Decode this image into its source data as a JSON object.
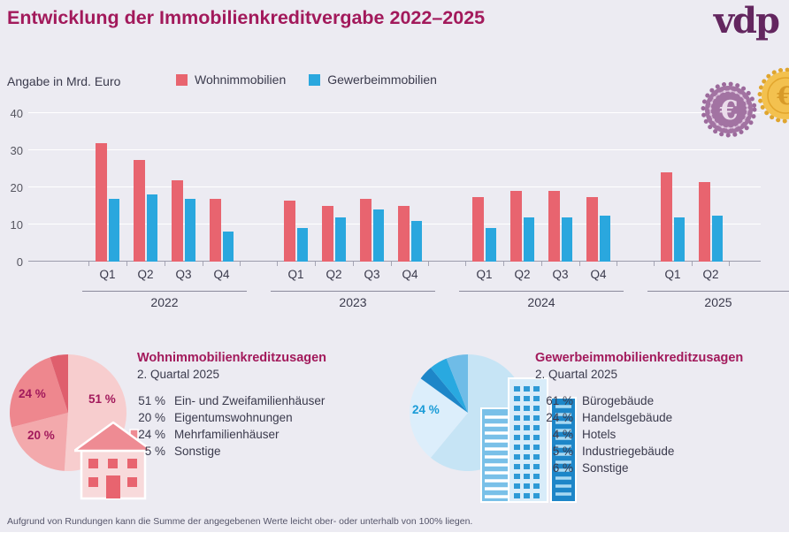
{
  "header": {
    "title": "Entwicklung der Immobilienkreditvergabe 2022–2025",
    "logo_text": "vdp"
  },
  "legend": {
    "unit_label": "Angabe in Mrd. Euro",
    "series": [
      {
        "label": "Wohnimmobilien",
        "color": "#e8646f"
      },
      {
        "label": "Gewerbeimmobilien",
        "color": "#2aa7de"
      }
    ]
  },
  "chart_data": {
    "type": "bar",
    "title": "Entwicklung der Immobilienkreditvergabe 2022–2025",
    "unit": "Mrd. Euro",
    "ylim": [
      0,
      40
    ],
    "yticks": [
      0,
      10,
      20,
      30,
      40
    ],
    "grid": true,
    "legend_position": "top",
    "groups": [
      {
        "year": "2022",
        "quarters": [
          "Q1",
          "Q2",
          "Q3",
          "Q4"
        ],
        "series": [
          {
            "name": "Wohnimmobilien",
            "values": [
              32,
              27.5,
              22,
              17
            ]
          },
          {
            "name": "Gewerbeimmobilien",
            "values": [
              17,
              18,
              17,
              8
            ]
          }
        ]
      },
      {
        "year": "2023",
        "quarters": [
          "Q1",
          "Q2",
          "Q3",
          "Q4"
        ],
        "series": [
          {
            "name": "Wohnimmobilien",
            "values": [
              16.5,
              15,
              17,
              15
            ]
          },
          {
            "name": "Gewerbeimmobilien",
            "values": [
              9,
              12,
              14,
              11
            ]
          }
        ]
      },
      {
        "year": "2024",
        "quarters": [
          "Q1",
          "Q2",
          "Q3",
          "Q4"
        ],
        "series": [
          {
            "name": "Wohnimmobilien",
            "values": [
              17.5,
              19,
              19,
              17.5
            ]
          },
          {
            "name": "Gewerbeimmobilien",
            "values": [
              9,
              12,
              12,
              12.5
            ]
          }
        ]
      },
      {
        "year": "2025",
        "quarters": [
          "Q1",
          "Q2"
        ],
        "series": [
          {
            "name": "Wohnimmobilien",
            "values": [
              24,
              21.5
            ]
          },
          {
            "name": "Gewerbeimmobilien",
            "values": [
              12,
              12.5
            ]
          }
        ]
      }
    ]
  },
  "wohn_breakdown": {
    "title": "Wohnimmobilienkreditzusagen",
    "subtitle": "2. Quartal 2025",
    "slices": [
      {
        "name": "Ein- und Zweifamilienhäuser",
        "pct": 51,
        "pct_label": "51 %",
        "color": "#f7cdce"
      },
      {
        "name": "Eigentumswohnungen",
        "pct": 20,
        "pct_label": "20 %",
        "color": "#f3a9ac"
      },
      {
        "name": "Mehrfamilienhäuser",
        "pct": 24,
        "pct_label": "24 %",
        "color": "#ee878e"
      },
      {
        "name": "Sonstige",
        "pct": 5,
        "pct_label": "5 %",
        "color": "#df5f6d"
      }
    ]
  },
  "gewerbe_breakdown": {
    "title": "Gewerbeimmobilienkreditzusagen",
    "subtitle": "2. Quartal 2025",
    "slices": [
      {
        "name": "Bürogebäude",
        "pct": 61,
        "pct_label": "61 %",
        "color": "#c6e4f5"
      },
      {
        "name": "Handelsgebäude",
        "pct": 24,
        "pct_label": "24 %",
        "color": "#dceefb"
      },
      {
        "name": "Hotels",
        "pct": 4,
        "pct_label": "4 %",
        "color": "#1d86c8"
      },
      {
        "name": "Industriegebäude",
        "pct": 5,
        "pct_label": "5 %",
        "color": "#29a9e0"
      },
      {
        "name": "Sonstige",
        "pct": 6,
        "pct_label": "6 %",
        "color": "#6fbce7"
      }
    ]
  },
  "icons": {
    "euro_symbol": "€",
    "coin_purple": "euro-coin-icon",
    "coin_gold": "gold-coin-icon",
    "house": "house-icon",
    "buildings": "office-buildings-icon"
  },
  "footer": {
    "note": "Aufgrund von Rundungen kann die Summe der angegebenen Werte leicht ober- oder unterhalb von 100% liegen."
  }
}
